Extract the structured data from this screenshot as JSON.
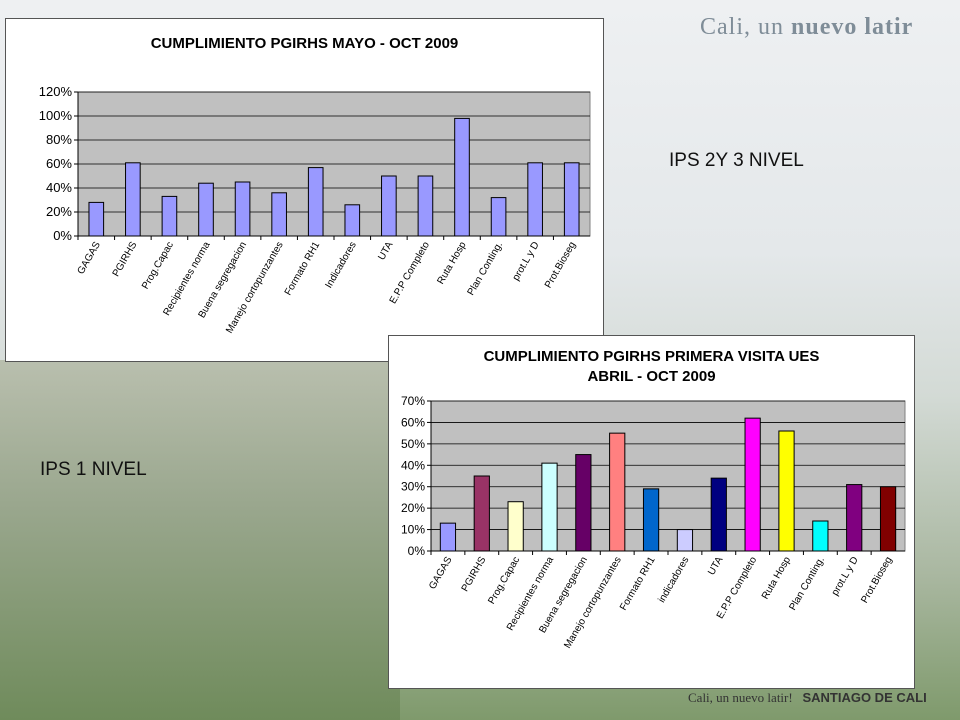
{
  "brand": {
    "top_text_1": "Cali, un ",
    "top_text_2": "nuevo latir",
    "bottom_text_1": "Cali, un nuevo latir!",
    "bottom_text_2": "SANTIAGO DE CALI"
  },
  "labels": {
    "ips_2_3": "IPS  2Y 3 NIVEL",
    "ips_1": "IPS 1 NIVEL"
  },
  "chart_data": [
    {
      "type": "bar",
      "title": "CUMPLIMIENTO PGIRHS MAYO - OCT 2009",
      "categories": [
        "GAGAS",
        "PGIRHS",
        "Prog.Capac",
        "Recipientes norma",
        "Buena segregacion",
        "Manejo cortopunzantes",
        "Formato RH1",
        "Indicadores",
        "UTA",
        "E.P.P Completo",
        "Ruta Hosp",
        "Plan Conting.",
        "prot.L y D",
        "Prot.Bioseg"
      ],
      "values": [
        28,
        61,
        33,
        44,
        45,
        36,
        57,
        26,
        50,
        50,
        98,
        32,
        61,
        61
      ],
      "ylim": [
        0,
        120
      ],
      "yticks": [
        "0%",
        "20%",
        "40%",
        "60%",
        "80%",
        "100%",
        "120%"
      ],
      "bar_color": "#9999ff",
      "grid": true
    },
    {
      "type": "bar",
      "title": "CUMPLIMIENTO PGIRHS PRIMERA VISITA UES",
      "subtitle": "ABRIL - OCT 2009",
      "categories": [
        "GAGAS",
        "PGIRHS",
        "Prog.Capac",
        "Recipientes norma",
        "Buena segregacion",
        "Manejo cortopunzantes",
        "Formato RH1",
        "indicadores",
        "UTA",
        "E.P.P Completo",
        "Ruta Hosp",
        "Plan Conting.",
        "prot.L y D",
        "Prot.Bioseg"
      ],
      "values": [
        13,
        35,
        23,
        41,
        45,
        55,
        29,
        10,
        34,
        62,
        56,
        14,
        31,
        30
      ],
      "ylim": [
        0,
        70
      ],
      "yticks": [
        "0%",
        "10%",
        "20%",
        "30%",
        "40%",
        "50%",
        "60%",
        "70%"
      ],
      "bar_colors": [
        "#9999ff",
        "#993366",
        "#ffffcc",
        "#ccffff",
        "#660066",
        "#ff8080",
        "#0066cc",
        "#ccccff",
        "#000080",
        "#ff00ff",
        "#ffff00",
        "#00ffff",
        "#800080",
        "#800000"
      ],
      "grid": true
    }
  ]
}
